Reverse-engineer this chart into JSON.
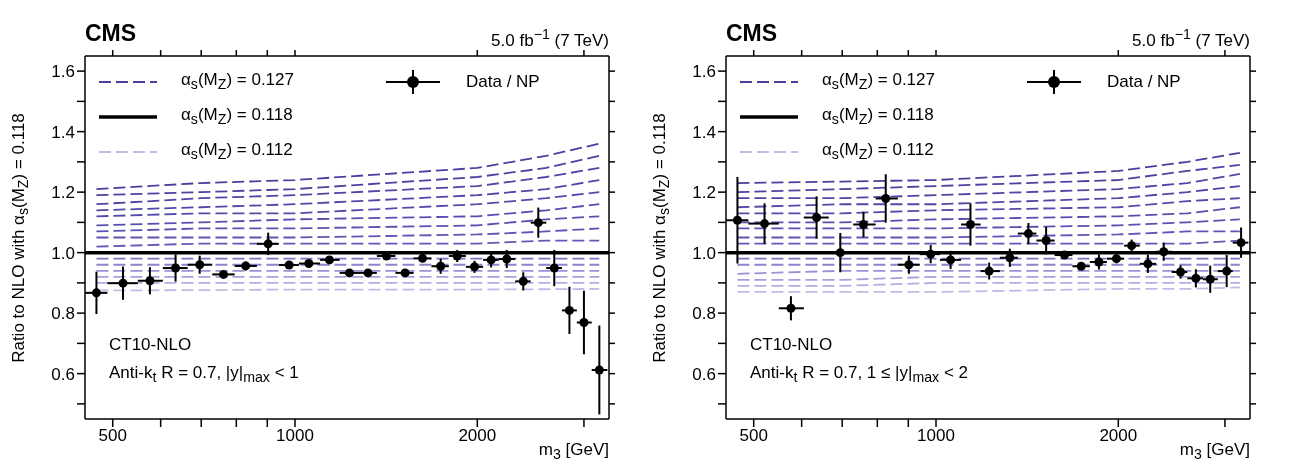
{
  "chart_data": [
    {
      "type": "line",
      "title": "CMS",
      "subtitle": "5.0 fb$^{−1}$ (7 TeV)",
      "xlabel": "m$_{3}$ [GeV]",
      "ylabel": "Ratio to NLO with α$_{s}$(M$_{Z}$) = 0.118",
      "annotations": [
        "CT10-NLO",
        "Anti-k$_{t}$ R = 0.7, |y|$_{max}$ < 1"
      ],
      "log": "x",
      "xlim": [
        450,
        3300
      ],
      "xticks": [
        500,
        {
          "value": 600,
          "label": null
        },
        {
          "value": 700,
          "label": null
        },
        {
          "value": 800,
          "label": null
        },
        {
          "value": 900,
          "label": null
        },
        1000,
        2000,
        {
          "value": 3000,
          "label": null
        }
      ],
      "ylim": [
        0.45,
        1.65
      ],
      "yticks": [
        {
          "value": 0.5,
          "label": null
        },
        0.6,
        {
          "value": 0.7,
          "label": null
        },
        0.8,
        {
          "value": 0.9,
          "label": null
        },
        {
          "value": 1,
          "label": "1.0"
        },
        {
          "value": 1.1,
          "label": null
        },
        1.2,
        {
          "value": 1.3,
          "label": null
        },
        1.4,
        {
          "value": 1.5,
          "label": null
        },
        1.6
      ],
      "legend": "top left",
      "series": [
        {
          "name": "α$_{s}$(M$_{Z}$) = 0.127",
          "line_style": "dashed",
          "marker": "none",
          "color": "#4a3f9f",
          "x": [
            470,
            700,
            1000,
            2000,
            2600,
            3180
          ],
          "values": [
            1.21,
            1.23,
            1.24,
            1.28,
            1.32,
            1.36
          ]
        },
        {
          "type": "line",
          "line_style": "dashed",
          "marker": "none",
          "color": "#4c42a2",
          "x": [
            470,
            700,
            1000,
            2000,
            2600,
            3180
          ],
          "values": [
            1.19,
            1.2,
            1.21,
            1.25,
            1.28,
            1.32
          ]
        },
        {
          "type": "line",
          "line_style": "dashed",
          "marker": "none",
          "color": "#4e45a6",
          "x": [
            470,
            700,
            1000,
            2000,
            2600,
            3180
          ],
          "values": [
            1.16,
            1.18,
            1.19,
            1.22,
            1.25,
            1.28
          ]
        },
        {
          "type": "line",
          "line_style": "dashed",
          "marker": "none",
          "color": "#5048a9",
          "x": [
            470,
            700,
            1000,
            2000,
            2600,
            3180
          ],
          "values": [
            1.14,
            1.15,
            1.16,
            1.19,
            1.21,
            1.24
          ]
        },
        {
          "type": "line",
          "line_style": "dashed",
          "marker": "none",
          "color": "#534bad",
          "x": [
            470,
            700,
            1000,
            2000,
            2600,
            3180
          ],
          "values": [
            1.12,
            1.13,
            1.13,
            1.16,
            1.18,
            1.2
          ]
        },
        {
          "type": "line",
          "line_style": "dashed",
          "marker": "none",
          "color": "#564fb0",
          "x": [
            470,
            700,
            1000,
            2000,
            2600,
            3180
          ],
          "values": [
            1.09,
            1.1,
            1.11,
            1.12,
            1.14,
            1.16
          ]
        },
        {
          "type": "line",
          "line_style": "dashed",
          "marker": "none",
          "color": "#5952b3",
          "x": [
            470,
            700,
            1000,
            2000,
            2600,
            3180
          ],
          "values": [
            1.07,
            1.08,
            1.08,
            1.09,
            1.11,
            1.12
          ]
        },
        {
          "type": "line",
          "line_style": "dashed",
          "marker": "none",
          "color": "#5c56b6",
          "x": [
            470,
            700,
            1000,
            2000,
            2600,
            3180
          ],
          "values": [
            1.05,
            1.05,
            1.05,
            1.06,
            1.07,
            1.08
          ]
        },
        {
          "type": "line",
          "line_style": "dashed",
          "marker": "none",
          "color": "#6059b9",
          "x": [
            470,
            700,
            1000,
            2000,
            2600,
            3180
          ],
          "values": [
            1.02,
            1.03,
            1.03,
            1.03,
            1.04,
            1.04
          ]
        },
        {
          "name": "α$_{s}$(M$_{Z}$) = 0.118",
          "type": "line",
          "line_style": "solid",
          "marker": "none",
          "color": "#000000",
          "x": [
            450,
            3300
          ],
          "values": [
            1,
            1
          ]
        },
        {
          "type": "line",
          "line_style": "dashed",
          "marker": "none",
          "color": "#7d76c6",
          "x": [
            470,
            700,
            1000,
            2000,
            2600,
            3180
          ],
          "values": [
            0.98,
            0.98,
            0.98,
            0.98,
            0.98,
            0.98
          ]
        },
        {
          "type": "line",
          "line_style": "dashed",
          "marker": "none",
          "color": "#8b85cd",
          "x": [
            470,
            700,
            1000,
            2000,
            2600,
            3180
          ],
          "values": [
            0.96,
            0.96,
            0.96,
            0.96,
            0.96,
            0.96
          ]
        },
        {
          "type": "line",
          "line_style": "dashed",
          "marker": "none",
          "color": "#9893d4",
          "x": [
            470,
            700,
            1000,
            2000,
            2600,
            3180
          ],
          "values": [
            0.94,
            0.94,
            0.94,
            0.94,
            0.94,
            0.94
          ]
        },
        {
          "type": "line",
          "line_style": "dashed",
          "marker": "none",
          "color": "#a6a1da",
          "x": [
            470,
            700,
            1000,
            2000,
            2600,
            3180
          ],
          "values": [
            0.92,
            0.92,
            0.92,
            0.92,
            0.92,
            0.92
          ]
        },
        {
          "type": "line",
          "line_style": "dashed",
          "marker": "none",
          "color": "#b3afe0",
          "x": [
            470,
            700,
            1000,
            2000,
            2600,
            3180
          ],
          "values": [
            0.9,
            0.9,
            0.9,
            0.9,
            0.9,
            0.9
          ]
        },
        {
          "name": "α$_{s}$(M$_{Z}$) = 0.112",
          "type": "line",
          "line_style": "dashed",
          "marker": "none",
          "color": "#bfbbe6",
          "x": [
            470,
            700,
            1000,
            2000,
            2600,
            3180
          ],
          "values": [
            0.875,
            0.876,
            0.878,
            0.878,
            0.879,
            0.88
          ]
        },
        {
          "name": "Data / NP",
          "type": "scatter",
          "marker": "circle",
          "color": "#000000",
          "x": [
            470,
            520,
            576,
            635,
            696,
            762,
            829,
            903,
            978,
            1054,
            1140,
            1230,
            1320,
            1416,
            1520,
            1624,
            1740,
            1853,
            1979,
            2108,
            2237,
            2382,
            2522,
            2680,
            2839,
            3000,
            3181
          ],
          "values": [
            0.867,
            0.899,
            0.907,
            0.949,
            0.96,
            0.928,
            0.956,
            1.029,
            0.959,
            0.964,
            0.976,
            0.933,
            0.933,
            0.989,
            0.933,
            0.981,
            0.955,
            0.989,
            0.953,
            0.976,
            0.979,
            0.905,
            1.099,
            0.949,
            0.809,
            0.769,
            0.612
          ],
          "errors": [
            0.07,
            0.055,
            0.045,
            0.045,
            0.03,
            0.01,
            0.015,
            0.037,
            0.01,
            0.01,
            0.01,
            0.01,
            0.01,
            0.01,
            0.01,
            0.01,
            0.025,
            0.02,
            0.02,
            0.025,
            0.03,
            0.03,
            0.05,
            0.06,
            0.078,
            0.105,
            0.147
          ],
          "xerrors": [
            [
              450,
              490
            ],
            [
              490,
              550
            ],
            [
              550,
              605
            ],
            [
              605,
              665
            ],
            [
              665,
              730
            ],
            [
              730,
              795
            ],
            [
              795,
              865
            ],
            [
              865,
              940
            ],
            [
              940,
              1015
            ],
            [
              1015,
              1100
            ],
            [
              1100,
              1185
            ],
            [
              1185,
              1275
            ],
            [
              1275,
              1365
            ],
            [
              1365,
              1465
            ],
            [
              1465,
              1570
            ],
            [
              1570,
              1680
            ],
            [
              1680,
              1795
            ],
            [
              1795,
              1915
            ],
            [
              1915,
              2045
            ],
            [
              2045,
              2170
            ],
            [
              2170,
              2310
            ],
            [
              2310,
              2450
            ],
            [
              2450,
              2600
            ],
            [
              2600,
              2760
            ],
            [
              2760,
              2920
            ],
            [
              2920,
              3090
            ],
            [
              3090,
              3280
            ]
          ]
        }
      ]
    },
    {
      "type": "line",
      "title": "CMS",
      "subtitle": "5.0 fb$^{−1}$ (7 TeV)",
      "xlabel": "m$_{3}$ [GeV]",
      "ylabel": "Ratio to NLO with α$_{s}$(M$_{Z}$) = 0.118",
      "annotations": [
        "CT10-NLO",
        "Anti-k$_{t}$ R = 0.7, 1 ≤ |y|$_{max}$ < 2"
      ],
      "log": "x",
      "xlim": [
        450,
        3300
      ],
      "xticks": [
        500,
        {
          "value": 600,
          "label": null
        },
        {
          "value": 700,
          "label": null
        },
        {
          "value": 800,
          "label": null
        },
        {
          "value": 900,
          "label": null
        },
        1000,
        2000,
        {
          "value": 3000,
          "label": null
        }
      ],
      "ylim": [
        0.45,
        1.65
      ],
      "yticks": [
        {
          "value": 0.5,
          "label": null
        },
        0.6,
        {
          "value": 0.7,
          "label": null
        },
        0.8,
        {
          "value": 0.9,
          "label": null
        },
        {
          "value": 1,
          "label": "1.0"
        },
        {
          "value": 1.1,
          "label": null
        },
        1.2,
        {
          "value": 1.3,
          "label": null
        },
        1.4,
        {
          "value": 1.5,
          "label": null
        },
        1.6
      ],
      "legend": "top left",
      "series": [
        {
          "name": "α$_{s}$(M$_{Z}$) = 0.127",
          "line_style": "dashed",
          "marker": "none",
          "color": "#4a3f9f",
          "x": [
            470,
            700,
            1000,
            2000,
            2600,
            3175
          ],
          "values": [
            1.23,
            1.235,
            1.24,
            1.27,
            1.3,
            1.33
          ]
        },
        {
          "type": "line",
          "line_style": "dashed",
          "marker": "none",
          "color": "#4c42a2",
          "x": [
            470,
            700,
            1000,
            2000,
            2600,
            3175
          ],
          "values": [
            1.2,
            1.21,
            1.22,
            1.24,
            1.27,
            1.29
          ]
        },
        {
          "type": "line",
          "line_style": "dashed",
          "marker": "none",
          "color": "#4e45a6",
          "x": [
            470,
            700,
            1000,
            2000,
            2600,
            3175
          ],
          "values": [
            1.18,
            1.18,
            1.19,
            1.21,
            1.23,
            1.26
          ]
        },
        {
          "type": "line",
          "line_style": "dashed",
          "marker": "none",
          "color": "#5048a9",
          "x": [
            470,
            700,
            1000,
            2000,
            2600,
            3175
          ],
          "values": [
            1.15,
            1.16,
            1.16,
            1.18,
            1.2,
            1.22
          ]
        },
        {
          "type": "line",
          "line_style": "dashed",
          "marker": "none",
          "color": "#534bad",
          "x": [
            470,
            700,
            1000,
            2000,
            2600,
            3175
          ],
          "values": [
            1.13,
            1.13,
            1.14,
            1.15,
            1.17,
            1.18
          ]
        },
        {
          "type": "line",
          "line_style": "dashed",
          "marker": "none",
          "color": "#564fb0",
          "x": [
            470,
            700,
            1000,
            2000,
            2600,
            3175
          ],
          "values": [
            1.1,
            1.1,
            1.11,
            1.12,
            1.13,
            1.15
          ]
        },
        {
          "type": "line",
          "line_style": "dashed",
          "marker": "none",
          "color": "#5952b3",
          "x": [
            470,
            700,
            1000,
            2000,
            2600,
            3175
          ],
          "values": [
            1.08,
            1.08,
            1.08,
            1.09,
            1.1,
            1.11
          ]
        },
        {
          "type": "line",
          "line_style": "dashed",
          "marker": "none",
          "color": "#5c56b6",
          "x": [
            470,
            700,
            1000,
            2000,
            2600,
            3175
          ],
          "values": [
            1.05,
            1.05,
            1.05,
            1.06,
            1.07,
            1.07
          ]
        },
        {
          "type": "line",
          "line_style": "dashed",
          "marker": "none",
          "color": "#6059b9",
          "x": [
            470,
            700,
            1000,
            2000,
            2600,
            3175
          ],
          "values": [
            1.03,
            1.03,
            1.03,
            1.03,
            1.03,
            1.04
          ]
        },
        {
          "name": "α$_{s}$(M$_{Z}$) = 0.118",
          "type": "line",
          "line_style": "solid",
          "marker": "none",
          "color": "#000000",
          "x": [
            450,
            3300
          ],
          "values": [
            1,
            1
          ]
        },
        {
          "type": "line",
          "line_style": "dashed",
          "marker": "none",
          "color": "#7d76c6",
          "x": [
            470,
            700,
            1000,
            2000,
            2600,
            3175
          ],
          "values": [
            0.98,
            0.98,
            0.98,
            0.98,
            0.98,
            0.98
          ]
        },
        {
          "type": "line",
          "line_style": "dashed",
          "marker": "none",
          "color": "#8b85cd",
          "x": [
            470,
            700,
            1000,
            2000,
            2600,
            3175
          ],
          "values": [
            0.96,
            0.96,
            0.96,
            0.96,
            0.96,
            0.96
          ]
        },
        {
          "type": "line",
          "line_style": "dashed",
          "marker": "none",
          "color": "#9893d4",
          "x": [
            470,
            700,
            1000,
            2000,
            2600,
            3175
          ],
          "values": [
            0.93,
            0.94,
            0.94,
            0.94,
            0.94,
            0.94
          ]
        },
        {
          "type": "line",
          "line_style": "dashed",
          "marker": "none",
          "color": "#a6a1da",
          "x": [
            470,
            700,
            1000,
            2000,
            2600,
            3175
          ],
          "values": [
            0.91,
            0.91,
            0.92,
            0.92,
            0.92,
            0.92
          ]
        },
        {
          "type": "line",
          "line_style": "dashed",
          "marker": "none",
          "color": "#b3afe0",
          "x": [
            470,
            700,
            1000,
            2000,
            2600,
            3175
          ],
          "values": [
            0.89,
            0.89,
            0.9,
            0.9,
            0.9,
            0.9
          ]
        },
        {
          "name": "α$_{s}$(M$_{Z}$) = 0.112",
          "type": "line",
          "line_style": "dashed",
          "marker": "none",
          "color": "#bfbbe6",
          "x": [
            470,
            700,
            1000,
            2000,
            2600,
            3175
          ],
          "values": [
            0.87,
            0.87,
            0.87,
            0.88,
            0.88,
            0.885
          ]
        },
        {
          "name": "Data / NP",
          "type": "scatter",
          "marker": "circle",
          "color": "#000000",
          "x": [
            470,
            521,
            576,
            635,
            695,
            759,
            826,
            902,
            980,
            1057,
            1140,
            1224,
            1324,
            1421,
            1520,
            1630,
            1737,
            1858,
            1986,
            2104,
            2238,
            2377,
            2534,
            2686,
            2837,
            3020,
            3190
          ],
          "values": [
            1.107,
            1.096,
            0.816,
            1.116,
            1.0,
            1.093,
            1.179,
            0.96,
            0.995,
            0.976,
            1.093,
            0.939,
            0.983,
            1.063,
            1.04,
            0.992,
            0.955,
            0.969,
            0.98,
            1.023,
            0.963,
            1.003,
            0.936,
            0.915,
            0.912,
            0.939,
            1.033
          ],
          "errors": [
            0.143,
            0.067,
            0.04,
            0.07,
            0.065,
            0.042,
            0.08,
            0.03,
            0.03,
            0.03,
            0.07,
            0.028,
            0.03,
            0.035,
            0.045,
            0.01,
            0.01,
            0.025,
            0.015,
            0.02,
            0.03,
            0.03,
            0.022,
            0.03,
            0.045,
            0.053,
            0.05
          ],
          "xerrors": [
            [
              450,
              490
            ],
            [
              490,
              550
            ],
            [
              550,
              605
            ],
            [
              605,
              665
            ],
            [
              665,
              730
            ],
            [
              730,
              795
            ],
            [
              795,
              865
            ],
            [
              865,
              940
            ],
            [
              940,
              1015
            ],
            [
              1015,
              1100
            ],
            [
              1100,
              1185
            ],
            [
              1185,
              1275
            ],
            [
              1275,
              1365
            ],
            [
              1365,
              1465
            ],
            [
              1465,
              1570
            ],
            [
              1570,
              1680
            ],
            [
              1680,
              1795
            ],
            [
              1795,
              1915
            ],
            [
              1915,
              2045
            ],
            [
              2045,
              2170
            ],
            [
              2170,
              2310
            ],
            [
              2310,
              2450
            ],
            [
              2450,
              2600
            ],
            [
              2600,
              2760
            ],
            [
              2760,
              2920
            ],
            [
              2920,
              3090
            ],
            [
              3090,
              3280
            ]
          ]
        }
      ]
    }
  ]
}
